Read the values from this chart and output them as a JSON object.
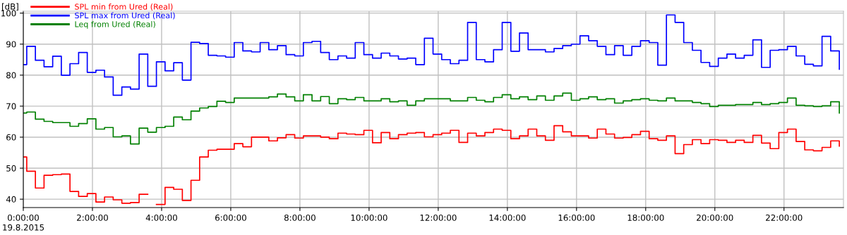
{
  "chart_data": {
    "type": "step",
    "ylabel": "[dB]",
    "annotations": [
      "19.8.2015"
    ],
    "x": [
      0,
      0.1,
      0.35,
      0.6,
      0.85,
      1.1,
      1.35,
      1.6,
      1.85,
      2.1,
      2.35,
      2.6,
      2.85,
      3.1,
      3.35,
      3.6,
      3.85,
      4.1,
      4.35,
      4.6,
      4.85,
      5.1,
      5.35,
      5.6,
      5.85,
      6.1,
      6.35,
      6.6,
      6.85,
      7.1,
      7.35,
      7.6,
      7.85,
      8.1,
      8.35,
      8.6,
      8.85,
      9.1,
      9.35,
      9.6,
      9.85,
      10.1,
      10.35,
      10.6,
      10.85,
      11.1,
      11.35,
      11.6,
      11.85,
      12.1,
      12.35,
      12.6,
      12.85,
      13.1,
      13.35,
      13.6,
      13.85,
      14.1,
      14.35,
      14.6,
      14.85,
      15.1,
      15.35,
      15.6,
      15.85,
      16.1,
      16.35,
      16.6,
      16.85,
      17.1,
      17.35,
      17.6,
      17.85,
      18.1,
      18.35,
      18.6,
      18.85,
      19.1,
      19.35,
      19.6,
      19.85,
      20.1,
      20.35,
      20.6,
      20.85,
      21.1,
      21.35,
      21.6,
      21.85,
      22.1,
      22.35,
      22.6,
      22.85,
      23.1,
      23.35,
      23.6
    ],
    "series": [
      {
        "name": "SPL min from Ured (Real)",
        "color": "#ff0000",
        "values": [
          53.6,
          49.0,
          43.6,
          47.7,
          47.9,
          48.1,
          42.5,
          40.9,
          41.8,
          39.1,
          40.7,
          39.8,
          38.7,
          38.9,
          41.6,
          null,
          38.3,
          43.8,
          43.2,
          39.6,
          46.1,
          53.6,
          55.8,
          56.1,
          56.1,
          57.9,
          56.9,
          60.0,
          60.0,
          58.8,
          59.8,
          60.8,
          59.7,
          60.4,
          60.4,
          60.0,
          59.5,
          61.3,
          61.0,
          60.8,
          62.2,
          58.2,
          61.5,
          59.5,
          60.8,
          61.3,
          61.5,
          60.1,
          60.8,
          61.3,
          62.2,
          58.3,
          61.3,
          60.4,
          61.5,
          62.6,
          62.2,
          59.5,
          60.4,
          62.6,
          60.4,
          59.0,
          63.7,
          61.7,
          60.4,
          60.4,
          59.7,
          62.6,
          61.0,
          59.7,
          59.9,
          60.8,
          61.9,
          59.5,
          59.0,
          60.4,
          54.7,
          57.6,
          59.2,
          57.9,
          59.2,
          59.0,
          58.3,
          59.0,
          58.3,
          60.6,
          58.1,
          56.3,
          61.5,
          62.6,
          58.6,
          55.9,
          55.6,
          56.7,
          58.8,
          57.1
        ]
      },
      {
        "name": "SPL max from Ured (Real)",
        "color": "#0000ff",
        "values": [
          83.4,
          89.3,
          84.8,
          82.7,
          86.1,
          80.0,
          83.7,
          87.3,
          80.9,
          81.6,
          79.4,
          73.5,
          76.2,
          75.5,
          86.8,
          76.4,
          84.3,
          81.4,
          84.0,
          78.4,
          90.6,
          90.2,
          86.4,
          86.2,
          85.8,
          90.5,
          87.8,
          87.5,
          90.5,
          88.2,
          89.5,
          86.6,
          86.2,
          90.5,
          90.9,
          87.3,
          85.0,
          86.2,
          85.5,
          90.5,
          86.6,
          85.5,
          87.1,
          86.2,
          85.2,
          85.5,
          83.4,
          91.9,
          86.8,
          85.0,
          83.7,
          84.8,
          97.0,
          85.0,
          84.3,
          88.2,
          97.0,
          87.7,
          93.6,
          88.2,
          88.2,
          87.5,
          88.6,
          89.5,
          90.0,
          92.7,
          91.1,
          89.3,
          86.6,
          89.5,
          86.4,
          89.3,
          91.1,
          90.5,
          83.2,
          99.4,
          97.0,
          90.5,
          88.0,
          84.1,
          82.8,
          85.5,
          86.8,
          85.5,
          86.4,
          91.4,
          82.5,
          88.0,
          88.2,
          89.3,
          86.2,
          83.5,
          83.0,
          92.5,
          87.8,
          81.9
        ]
      },
      {
        "name": "Leq from Ured (Real)",
        "color": "#008000",
        "values": [
          67.8,
          68.1,
          65.8,
          65.1,
          64.7,
          64.7,
          63.5,
          64.4,
          65.9,
          62.6,
          63.1,
          60.1,
          60.4,
          57.8,
          62.9,
          61.6,
          63.1,
          63.5,
          66.5,
          65.6,
          68.4,
          69.4,
          69.9,
          71.6,
          71.2,
          72.6,
          72.6,
          72.6,
          72.6,
          73.0,
          73.9,
          73.0,
          71.7,
          73.7,
          71.7,
          73.1,
          70.8,
          72.4,
          72.1,
          72.8,
          71.7,
          71.7,
          72.4,
          71.4,
          71.7,
          70.3,
          71.7,
          72.4,
          72.4,
          72.4,
          71.7,
          71.7,
          72.8,
          71.9,
          71.4,
          72.8,
          73.7,
          72.4,
          73.0,
          72.1,
          73.3,
          71.9,
          73.3,
          74.2,
          71.9,
          72.4,
          73.0,
          72.1,
          72.4,
          71.0,
          71.7,
          72.1,
          72.4,
          71.9,
          71.7,
          72.6,
          71.7,
          71.7,
          71.2,
          70.8,
          69.9,
          70.3,
          70.3,
          70.5,
          70.5,
          71.2,
          70.5,
          70.8,
          71.2,
          72.6,
          70.3,
          70.1,
          69.9,
          70.1,
          71.4,
          67.8
        ]
      }
    ],
    "xlim": [
      0,
      23.72
    ],
    "xticks": [
      {
        "value": 0,
        "label": "0:00:00"
      },
      {
        "value": 2,
        "label": "2:00:00"
      },
      {
        "value": 4,
        "label": "4:00:00"
      },
      {
        "value": 6,
        "label": "6:00:00"
      },
      {
        "value": 8,
        "label": "8:00:00"
      },
      {
        "value": 10,
        "label": "10:00:00"
      },
      {
        "value": 12,
        "label": "12:00:00"
      },
      {
        "value": 14,
        "label": "14:00:00"
      },
      {
        "value": 16,
        "label": "16:00:00"
      },
      {
        "value": 18,
        "label": "18:00:00"
      },
      {
        "value": 20,
        "label": "20:00:00"
      },
      {
        "value": 22,
        "label": "22:00:00"
      }
    ],
    "ylim": [
      37.3,
      100.6
    ],
    "yticks": [
      40,
      50,
      60,
      70,
      80,
      90,
      100
    ],
    "grid": true,
    "legend": "top left"
  }
}
